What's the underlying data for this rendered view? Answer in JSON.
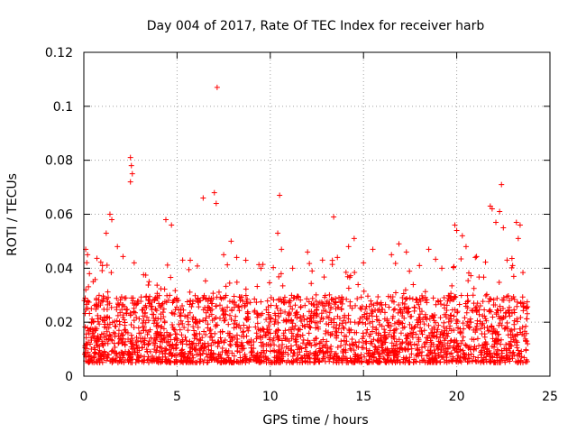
{
  "chart_data": {
    "type": "scatter",
    "title": "Day 004 of 2017, Rate Of TEC Index for receiver harb",
    "xlabel": "GPS time / hours",
    "ylabel": "ROTI / TECUs",
    "xlim": [
      0,
      25
    ],
    "ylim": [
      0,
      0.12
    ],
    "xticks": [
      0,
      5,
      10,
      15,
      20,
      25
    ],
    "xtick_labels": [
      "0",
      "5",
      "10",
      "15",
      "20",
      "25"
    ],
    "yticks": [
      0,
      0.02,
      0.04,
      0.06,
      0.08,
      0.1,
      0.12
    ],
    "ytick_labels": [
      "0",
      "0.02",
      "0.04",
      "0.06",
      "0.08",
      "0.1",
      "0.12"
    ],
    "grid": true,
    "marker": "+",
    "color": "#ff0000",
    "series": [
      {
        "name": "ROTI",
        "description_note": "dense band of points from 0 to ~23.8 h, mostly 0.005-0.03 TECU",
        "points": [
          [
            0.1,
            0.047
          ],
          [
            0.2,
            0.045
          ],
          [
            0.3,
            0.038
          ],
          [
            0.5,
            0.035
          ],
          [
            1.0,
            0.041
          ],
          [
            1.2,
            0.053
          ],
          [
            1.4,
            0.06
          ],
          [
            1.5,
            0.058
          ],
          [
            1.8,
            0.048
          ],
          [
            2.5,
            0.081
          ],
          [
            2.55,
            0.078
          ],
          [
            2.6,
            0.075
          ],
          [
            2.5,
            0.072
          ],
          [
            2.7,
            0.042
          ],
          [
            3.5,
            0.035
          ],
          [
            4.4,
            0.058
          ],
          [
            4.7,
            0.056
          ],
          [
            5.3,
            0.043
          ],
          [
            6.4,
            0.066
          ],
          [
            7.0,
            0.068
          ],
          [
            7.1,
            0.064
          ],
          [
            7.15,
            0.107
          ],
          [
            7.5,
            0.045
          ],
          [
            7.9,
            0.05
          ],
          [
            8.2,
            0.044
          ],
          [
            9.5,
            0.04
          ],
          [
            10.5,
            0.067
          ],
          [
            10.4,
            0.053
          ],
          [
            10.6,
            0.047
          ],
          [
            11.2,
            0.04
          ],
          [
            12.0,
            0.046
          ],
          [
            12.8,
            0.043
          ],
          [
            13.4,
            0.059
          ],
          [
            13.6,
            0.044
          ],
          [
            14.2,
            0.048
          ],
          [
            14.5,
            0.051
          ],
          [
            15.0,
            0.042
          ],
          [
            15.5,
            0.047
          ],
          [
            16.5,
            0.045
          ],
          [
            16.9,
            0.049
          ],
          [
            17.3,
            0.046
          ],
          [
            18.0,
            0.041
          ],
          [
            18.5,
            0.047
          ],
          [
            19.2,
            0.04
          ],
          [
            19.9,
            0.056
          ],
          [
            20.0,
            0.054
          ],
          [
            20.3,
            0.052
          ],
          [
            20.5,
            0.048
          ],
          [
            21.0,
            0.044
          ],
          [
            21.8,
            0.063
          ],
          [
            21.9,
            0.062
          ],
          [
            22.1,
            0.057
          ],
          [
            22.3,
            0.061
          ],
          [
            22.4,
            0.071
          ],
          [
            22.5,
            0.055
          ],
          [
            22.7,
            0.043
          ],
          [
            23.0,
            0.041
          ],
          [
            23.2,
            0.057
          ],
          [
            23.4,
            0.056
          ],
          [
            23.3,
            0.051
          ],
          [
            23.6,
            0.027
          ],
          [
            23.8,
            0.012
          ]
        ],
        "band": {
          "x_range": [
            0,
            23.8
          ],
          "typical_y_range": [
            0.005,
            0.03
          ]
        }
      }
    ]
  }
}
